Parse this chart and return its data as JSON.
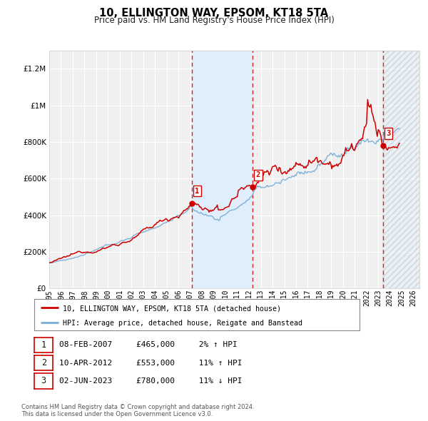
{
  "title": "10, ELLINGTON WAY, EPSOM, KT18 5TA",
  "subtitle": "Price paid vs. HM Land Registry's House Price Index (HPI)",
  "background_color": "#ffffff",
  "plot_bg_color": "#f0f0f0",
  "grid_color": "#ffffff",
  "ylim": [
    0,
    1300000
  ],
  "xlim_start": 1995.0,
  "xlim_end": 2026.5,
  "yticks": [
    0,
    200000,
    400000,
    600000,
    800000,
    1000000,
    1200000
  ],
  "ytick_labels": [
    "£0",
    "£200K",
    "£400K",
    "£600K",
    "£800K",
    "£1M",
    "£1.2M"
  ],
  "xticks": [
    1995,
    1996,
    1997,
    1998,
    1999,
    2000,
    2001,
    2002,
    2003,
    2004,
    2005,
    2006,
    2007,
    2008,
    2009,
    2010,
    2011,
    2012,
    2013,
    2014,
    2015,
    2016,
    2017,
    2018,
    2019,
    2020,
    2021,
    2022,
    2023,
    2024,
    2025,
    2026
  ],
  "sale_dates": [
    2007.11,
    2012.28,
    2023.42
  ],
  "sale_prices": [
    465000,
    553000,
    780000
  ],
  "sale_labels": [
    "1",
    "2",
    "3"
  ],
  "shaded_regions_solid": [
    [
      2007.11,
      2012.28
    ]
  ],
  "shaded_regions_hatched": [
    [
      2023.42,
      2026.5
    ]
  ],
  "legend_line1": "10, ELLINGTON WAY, EPSOM, KT18 5TA (detached house)",
  "legend_line2": "HPI: Average price, detached house, Reigate and Banstead",
  "table_rows": [
    [
      "1",
      "08-FEB-2007",
      "£465,000",
      "2% ↑ HPI"
    ],
    [
      "2",
      "10-APR-2012",
      "£553,000",
      "11% ↑ HPI"
    ],
    [
      "3",
      "02-JUN-2023",
      "£780,000",
      "11% ↓ HPI"
    ]
  ],
  "footer": "Contains HM Land Registry data © Crown copyright and database right 2024.\nThis data is licensed under the Open Government Licence v3.0.",
  "red_color": "#cc0000",
  "blue_color": "#7aaed6",
  "shade_color": "#ddeeff",
  "hatch_color": "#cccccc"
}
